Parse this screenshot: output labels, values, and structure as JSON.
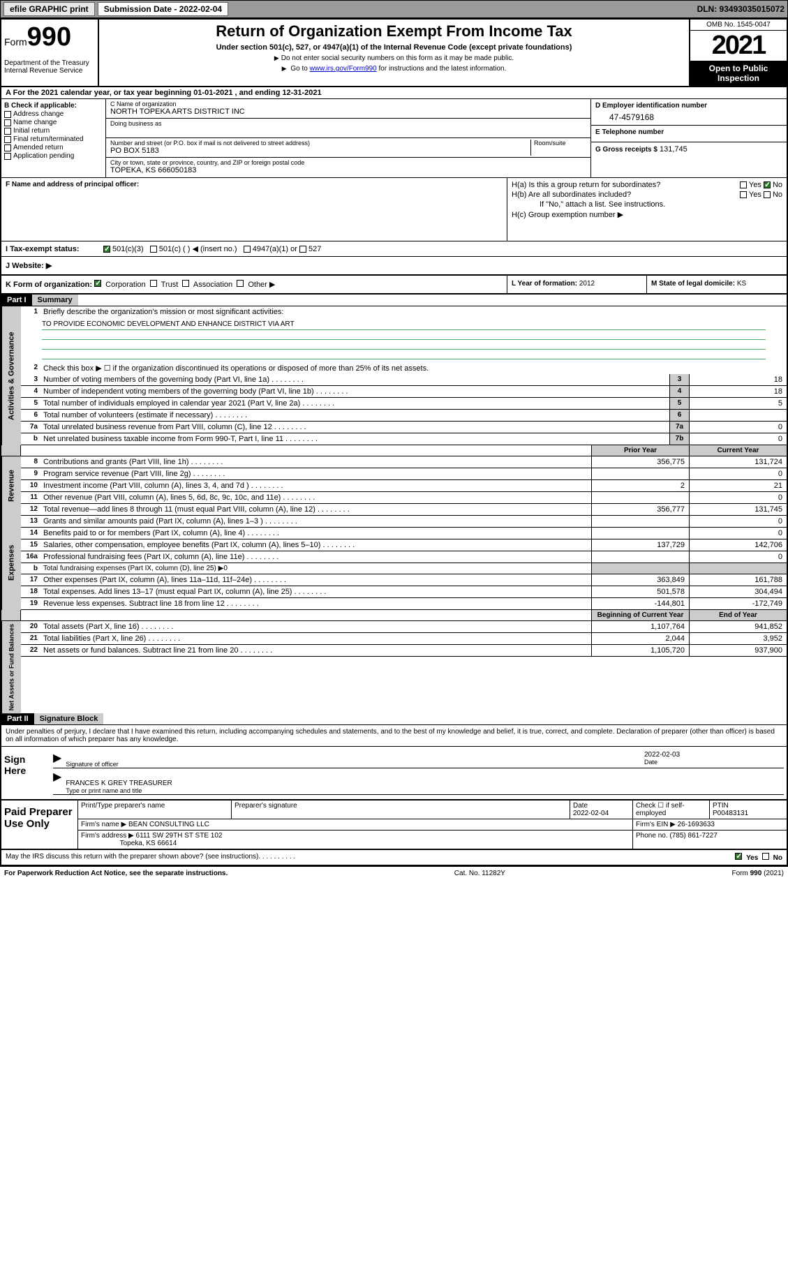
{
  "topbar": {
    "efile": "efile GRAPHIC print",
    "sub_label": "Submission Date - 2022-02-04",
    "dln": "DLN: 93493035015072"
  },
  "header": {
    "form_word": "Form",
    "form_num": "990",
    "dept": "Department of the Treasury Internal Revenue Service",
    "title": "Return of Organization Exempt From Income Tax",
    "subtitle": "Under section 501(c), 527, or 4947(a)(1) of the Internal Revenue Code (except private foundations)",
    "note1": "Do not enter social security numbers on this form as it may be made public.",
    "note2_pre": "Go to ",
    "note2_link": "www.irs.gov/Form990",
    "note2_post": " for instructions and the latest information.",
    "omb": "OMB No. 1545-0047",
    "year": "2021",
    "open": "Open to Public Inspection"
  },
  "row_a": "A For the 2021 calendar year, or tax year beginning 01-01-2021   , and ending 12-31-2021",
  "col_b": {
    "hdr": "B Check if applicable:",
    "items": [
      "Address change",
      "Name change",
      "Initial return",
      "Final return/terminated",
      "Amended return",
      "Application pending"
    ]
  },
  "col_c": {
    "name_lbl": "C Name of organization",
    "name": "NORTH TOPEKA ARTS DISTRICT INC",
    "dba_lbl": "Doing business as",
    "dba": "",
    "addr_lbl": "Number and street (or P.O. box if mail is not delivered to street address)",
    "room_lbl": "Room/suite",
    "addr": "PO BOX 5183",
    "city_lbl": "City or town, state or province, country, and ZIP or foreign postal code",
    "city": "TOPEKA, KS  666050183"
  },
  "col_d": {
    "ein_lbl": "D Employer identification number",
    "ein": "47-4579168",
    "tel_lbl": "E Telephone number",
    "tel": "",
    "gross_lbl": "G Gross receipts $",
    "gross": "131,745"
  },
  "col_f": {
    "lbl": "F Name and address of principal officer:",
    "val": ""
  },
  "col_h": {
    "ha": "H(a)  Is this a group return for subordinates?",
    "hb": "H(b)  Are all subordinates included?",
    "hb_note": "If \"No,\" attach a list. See instructions.",
    "hc": "H(c)  Group exemption number ▶",
    "yes": "Yes",
    "no": "No"
  },
  "row_i": {
    "lbl": "I   Tax-exempt status:",
    "opts": [
      "501(c)(3)",
      "501(c) (  ) ◀ (insert no.)",
      "4947(a)(1) or",
      "527"
    ]
  },
  "row_j": {
    "lbl": "J   Website: ▶",
    "val": ""
  },
  "row_k": {
    "left_lbl": "K Form of organization:",
    "opts": [
      "Corporation",
      "Trust",
      "Association",
      "Other ▶"
    ],
    "mid_lbl": "L Year of formation:",
    "mid_val": "2012",
    "right_lbl": "M State of legal domicile:",
    "right_val": "KS"
  },
  "parts": {
    "p1": "Part I",
    "p1_title": "Summary",
    "p2": "Part II",
    "p2_title": "Signature Block"
  },
  "governance": {
    "label": "Activities & Governance",
    "l1": "Briefly describe the organization's mission or most significant activities:",
    "l1_val": "TO PROVIDE ECONOMIC DEVELOPMENT AND ENHANCE DISTRICT VIA ART",
    "l2": "Check this box ▶ ☐  if the organization discontinued its operations or disposed of more than 25% of its net assets.",
    "l3": "Number of voting members of the governing body (Part VI, line 1a)",
    "l3v": "18",
    "l4": "Number of independent voting members of the governing body (Part VI, line 1b)",
    "l4v": "18",
    "l5": "Total number of individuals employed in calendar year 2021 (Part V, line 2a)",
    "l5v": "5",
    "l6": "Total number of volunteers (estimate if necessary)",
    "l6v": "",
    "l7a": "Total unrelated business revenue from Part VIII, column (C), line 12",
    "l7av": "0",
    "l7b": "Net unrelated business taxable income from Form 990-T, Part I, line 11",
    "l7bv": "0"
  },
  "col_headers": {
    "prior": "Prior Year",
    "current": "Current Year",
    "begin": "Beginning of Current Year",
    "end": "End of Year"
  },
  "revenue": {
    "label": "Revenue",
    "rows": [
      {
        "n": "8",
        "d": "Contributions and grants (Part VIII, line 1h)",
        "p": "356,775",
        "c": "131,724"
      },
      {
        "n": "9",
        "d": "Program service revenue (Part VIII, line 2g)",
        "p": "",
        "c": "0"
      },
      {
        "n": "10",
        "d": "Investment income (Part VIII, column (A), lines 3, 4, and 7d )",
        "p": "2",
        "c": "21"
      },
      {
        "n": "11",
        "d": "Other revenue (Part VIII, column (A), lines 5, 6d, 8c, 9c, 10c, and 11e)",
        "p": "",
        "c": "0"
      },
      {
        "n": "12",
        "d": "Total revenue—add lines 8 through 11 (must equal Part VIII, column (A), line 12)",
        "p": "356,777",
        "c": "131,745"
      }
    ]
  },
  "expenses": {
    "label": "Expenses",
    "rows": [
      {
        "n": "13",
        "d": "Grants and similar amounts paid (Part IX, column (A), lines 1–3 )",
        "p": "",
        "c": "0"
      },
      {
        "n": "14",
        "d": "Benefits paid to or for members (Part IX, column (A), line 4)",
        "p": "",
        "c": "0"
      },
      {
        "n": "15",
        "d": "Salaries, other compensation, employee benefits (Part IX, column (A), lines 5–10)",
        "p": "137,729",
        "c": "142,706"
      },
      {
        "n": "16a",
        "d": "Professional fundraising fees (Part IX, column (A), line 11e)",
        "p": "",
        "c": "0"
      },
      {
        "n": "b",
        "d": "Total fundraising expenses (Part IX, column (D), line 25) ▶0",
        "p": null,
        "c": null
      },
      {
        "n": "17",
        "d": "Other expenses (Part IX, column (A), lines 11a–11d, 11f–24e)",
        "p": "363,849",
        "c": "161,788"
      },
      {
        "n": "18",
        "d": "Total expenses. Add lines 13–17 (must equal Part IX, column (A), line 25)",
        "p": "501,578",
        "c": "304,494"
      },
      {
        "n": "19",
        "d": "Revenue less expenses. Subtract line 18 from line 12",
        "p": "-144,801",
        "c": "-172,749"
      }
    ]
  },
  "netassets": {
    "label": "Net Assets or Fund Balances",
    "rows": [
      {
        "n": "20",
        "d": "Total assets (Part X, line 16)",
        "p": "1,107,764",
        "c": "941,852"
      },
      {
        "n": "21",
        "d": "Total liabilities (Part X, line 26)",
        "p": "2,044",
        "c": "3,952"
      },
      {
        "n": "22",
        "d": "Net assets or fund balances. Subtract line 21 from line 20",
        "p": "1,105,720",
        "c": "937,900"
      }
    ]
  },
  "sig": {
    "intro": "Under penalties of perjury, I declare that I have examined this return, including accompanying schedules and statements, and to the best of my knowledge and belief, it is true, correct, and complete. Declaration of preparer (other than officer) is based on all information of which preparer has any knowledge.",
    "sign_here": "Sign Here",
    "sig_officer": "Signature of officer",
    "date_lbl": "Date",
    "date_val": "2022-02-03",
    "name": "FRANCES K GREY  TREASURER",
    "name_lbl": "Type or print name and title"
  },
  "prep": {
    "title": "Paid Preparer Use Only",
    "h1": "Print/Type preparer's name",
    "h2": "Preparer's signature",
    "h3": "Date",
    "h3v": "2022-02-04",
    "h4": "Check ☐ if self-employed",
    "h5": "PTIN",
    "h5v": "P00483131",
    "firm_lbl": "Firm's name    ▶",
    "firm": "BEAN CONSULTING LLC",
    "ein_lbl": "Firm's EIN ▶",
    "ein": "26-1693633",
    "addr_lbl": "Firm's address ▶",
    "addr1": "6111 SW 29TH ST STE 102",
    "addr2": "Topeka, KS  66614",
    "phone_lbl": "Phone no.",
    "phone": "(785) 861-7227"
  },
  "footer": {
    "q": "May the IRS discuss this return with the preparer shown above? (see instructions)",
    "yes": "Yes",
    "no": "No",
    "pra": "For Paperwork Reduction Act Notice, see the separate instructions.",
    "cat": "Cat. No. 11282Y",
    "form": "Form 990 (2021)"
  },
  "colors": {
    "topbar_bg": "#9a9a9a",
    "shade": "#cccccc",
    "link": "#0000cc",
    "check": "#2a7a2a"
  }
}
